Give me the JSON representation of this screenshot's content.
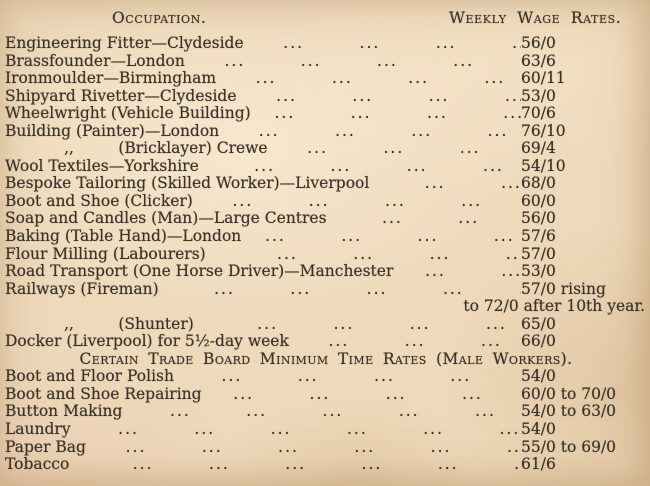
{
  "document": {
    "paper_color": "#eed9ba",
    "ink_color": "#3a332b"
  },
  "table": {
    "columns": [
      "Occupation.",
      "Weekly Wage Rates."
    ],
    "rows": [
      {
        "type": "data",
        "occupation": "Engineering Fitter—Clydeside",
        "dots": "     ...       ...       ...       ...       ...",
        "value": "56/0"
      },
      {
        "type": "data",
        "occupation": "Brassfounder—London",
        "dots": "     ...       ...       ...       ...       ...       ...",
        "value": "63/6"
      },
      {
        "type": "data",
        "occupation": "Ironmoulder—Birmingham",
        "dots": "     ...       ...       ...       ...       ..",
        "value": "60/11"
      },
      {
        "type": "data",
        "occupation": "Shipyard Rivetter—Clydeside",
        "dots": "     ...       ...       ...       ...       ...",
        "value": "53/0"
      },
      {
        "type": "data",
        "occupation": "Wheelwright (Vehicle Building)",
        "dots": "   ...       ...       ...       ...       ...",
        "value": "70/6"
      },
      {
        "type": "data",
        "occupation": "Building (Painter)—London",
        "dots": "     ...       ...       ...       ...       ...",
        "value": "76/10"
      },
      {
        "type": "data",
        "occupation": "            ,,         (Bricklayer) Crewe",
        "dots": "     ...       ...       ...       ...       ...",
        "value": "69/4"
      },
      {
        "type": "data",
        "occupation": "Wool Textiles—Yorkshire",
        "dots": "       ...       ...       ...       ...       ...",
        "value": "54/10"
      },
      {
        "type": "data",
        "occupation": "Bespoke Tailoring (Skilled Worker)—Liverpool",
        "dots": "       ...       ...",
        "value": "68/0"
      },
      {
        "type": "data",
        "occupation": "Boot and Shoe (Clicker)",
        "dots": "     ...       ...       ...       ...       ...       ...",
        "value": "60/0"
      },
      {
        "type": "data",
        "occupation": "Soap and Candles (Man)—Large Centres",
        "dots": "       ...       ...       ...",
        "value": "56/0"
      },
      {
        "type": "data",
        "occupation": "Baking (Table Hand)—London",
        "dots": "   ...       ...       ...       ...       ...",
        "value": "57/6"
      },
      {
        "type": "data",
        "occupation": "Flour Milling (Labourers)",
        "dots": "         ...       ...       ...       ...       ...",
        "value": "57/0"
      },
      {
        "type": "data",
        "occupation": "Road Transport (One Horse Driver)—Manchester",
        "dots": "    ...       ...",
        "value": "53/0"
      },
      {
        "type": "data",
        "occupation": "Railways (Fireman)",
        "dots": "       ...       ...       ...       ...       ...       ...",
        "value": "57/0 rising"
      },
      {
        "type": "continuation",
        "occupation": "",
        "dots": "",
        "value": "to 72/0 after 10th year."
      },
      {
        "type": "data",
        "occupation": "            ,,         (Shunter)",
        "dots": "        ...       ...       ...       ...       ...       ...",
        "value": "65/0"
      },
      {
        "type": "data",
        "occupation": "Docker (Liverpool) for 5½-day week",
        "dots": "     ...       ...       ...       ..",
        "value": "66/0"
      },
      {
        "type": "section",
        "occupation": "Certain Trade Board Minimum Time Rates (Male Workers).",
        "dots": "",
        "value": ""
      },
      {
        "type": "data",
        "occupation": "Boot and Floor Polish",
        "dots": "      ...       ...       ...       ...       ...       ...",
        "value": "54/0"
      },
      {
        "type": "data",
        "occupation": "Boot and Shoe Repairing",
        "dots": "    ...       ...       ...       ...       ...       ...",
        "value": "60/0 to 70/0"
      },
      {
        "type": "data",
        "occupation": "Button Making",
        "dots": "      ...       ...       ...       ...       ...       ...       ...",
        "value": "54/0 to 63/0"
      },
      {
        "type": "data",
        "occupation": "Laundry",
        "dots": "      ...       ...       ...       ...       ...       ...       ...       ...",
        "value": "54/0"
      },
      {
        "type": "data",
        "occupation": "Paper Bag",
        "dots": "     ...       ...       ...       ...       ...       ...       ...       ...",
        "value": "55/0 to 69/0"
      },
      {
        "type": "data",
        "occupation": "Tobacco",
        "dots": "        ...       ...       ...       ...       ...       ...       ...       ...",
        "value": "61/6"
      }
    ]
  }
}
